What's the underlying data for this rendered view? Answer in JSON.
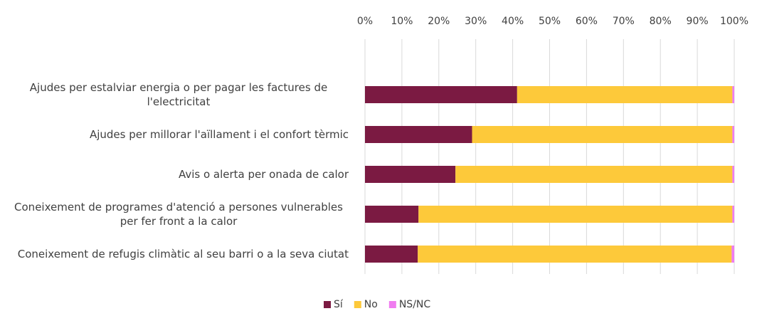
{
  "chart_data": {
    "type": "stacked-bar-horizontal",
    "categories": [
      "Ajudes per estalviar energia o per pagar les factures de l'electricitat",
      "Ajudes per millorar l'aïllament i el confort tèrmic",
      "Avis o alerta per onada de calor",
      "Coneixement de programes d'atenció a persones vulnerables per fer front a la calor",
      "Coneixement de refugis climàtic al seu barri o a la seva ciutat"
    ],
    "series": [
      {
        "name": "Sí",
        "color": "#7b1a42",
        "values": [
          41.2,
          29,
          24.5,
          14.5,
          14.3
        ]
      },
      {
        "name": "No",
        "color": "#fdc93a",
        "values": [
          58.3,
          70.5,
          75,
          85,
          85
        ]
      },
      {
        "name": "NS/NC",
        "color": "#f07cf0",
        "values": [
          0.5,
          0.5,
          0.5,
          0.5,
          0.7
        ]
      }
    ],
    "xlim": [
      0,
      100
    ],
    "xticks": [
      {
        "value": 0,
        "label": "0%"
      },
      {
        "value": 10,
        "label": "10%"
      },
      {
        "value": 20,
        "label": "20%"
      },
      {
        "value": 30,
        "label": "30%"
      },
      {
        "value": 40,
        "label": "40%"
      },
      {
        "value": 50,
        "label": "50%"
      },
      {
        "value": 60,
        "label": "60%"
      },
      {
        "value": 70,
        "label": "70%"
      },
      {
        "value": 80,
        "label": "80%"
      },
      {
        "value": 90,
        "label": "90%"
      },
      {
        "value": 100,
        "label": "100%"
      }
    ],
    "grid": true,
    "legend": "bottom"
  }
}
